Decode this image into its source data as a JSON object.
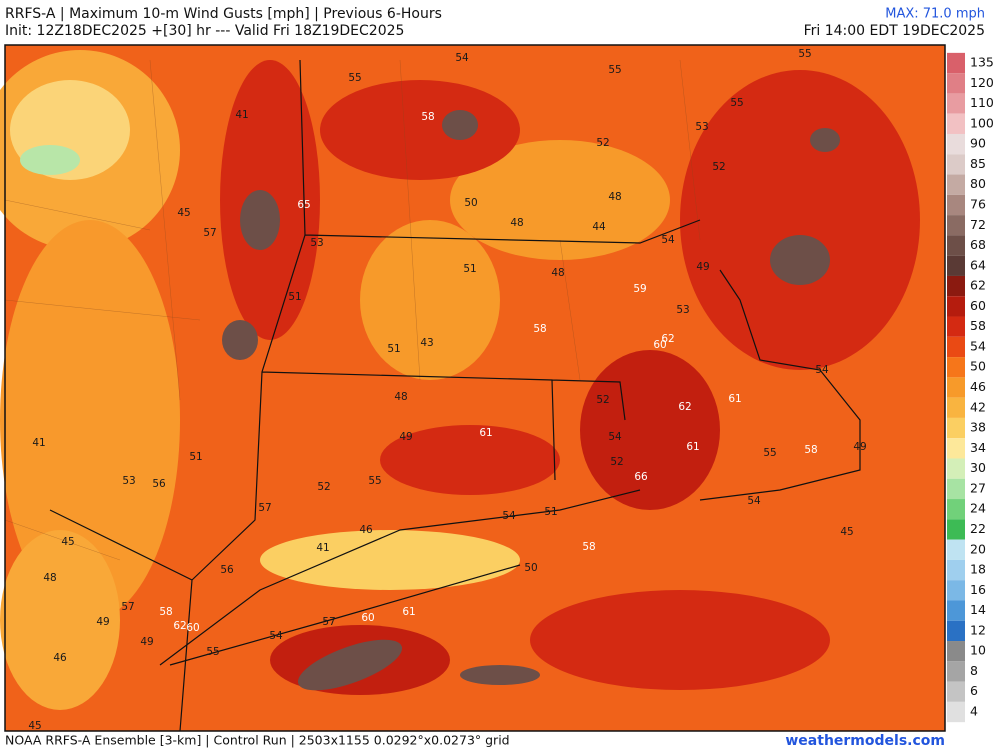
{
  "header": {
    "title": "RRFS-A | Maximum 10-m Wind Gusts [mph] | Previous 6-Hours",
    "init": "Init: 12Z18DEC2025 +[30] hr --- Valid Fri 18Z19DEC2025",
    "max": "MAX: 71.0 mph",
    "valid": "Fri 14:00 EDT 19DEC2025"
  },
  "colorbar": {
    "levels": [
      135,
      120,
      110,
      100,
      90,
      85,
      80,
      76,
      72,
      68,
      64,
      62,
      60,
      58,
      54,
      50,
      46,
      42,
      38,
      34,
      30,
      27,
      24,
      22,
      20,
      18,
      16,
      14,
      12,
      10,
      8,
      6,
      4
    ],
    "colors": [
      "#d9606a",
      "#e07f86",
      "#e89ca1",
      "#f2c1c3",
      "#e9dcdc",
      "#dccbc8",
      "#c4aaa3",
      "#a8877f",
      "#8a6b63",
      "#6d4f48",
      "#5a3a35",
      "#8b1a10",
      "#b51c0e",
      "#d42a12",
      "#ea4a14",
      "#f6761a",
      "#f79a2a",
      "#f9b440",
      "#fbcf62",
      "#fde89a",
      "#d4efb8",
      "#a7e3a3",
      "#71d17a",
      "#3dbb55",
      "#bfe3f2",
      "#9fcfee",
      "#7bb8e6",
      "#4d97d8",
      "#2a71c4",
      "#8a8a8a",
      "#a5a5a5",
      "#c4c4c4",
      "#e0e0e0"
    ]
  },
  "map_labels": [
    55,
    54,
    55,
    55,
    41,
    58,
    55,
    53,
    52,
    52,
    45,
    65,
    50,
    48,
    48,
    44,
    57,
    53,
    54,
    51,
    48,
    49,
    51,
    59,
    58,
    53,
    51,
    43,
    60,
    62,
    54,
    48,
    52,
    62,
    61,
    49,
    61,
    41,
    54,
    61,
    55,
    58,
    49,
    51,
    52,
    53,
    56,
    55,
    52,
    66,
    57,
    54,
    54,
    51,
    46,
    45,
    45,
    41,
    58,
    56,
    50,
    48,
    57,
    58,
    61,
    60,
    57,
    49,
    62,
    60,
    54,
    49,
    55,
    46,
    45
  ],
  "footer": {
    "source": "NOAA RRFS-A Ensemble [3-km] | Control Run | 2503x1155 0.0292°x0.0273° grid",
    "site": "weathermodels.com"
  }
}
